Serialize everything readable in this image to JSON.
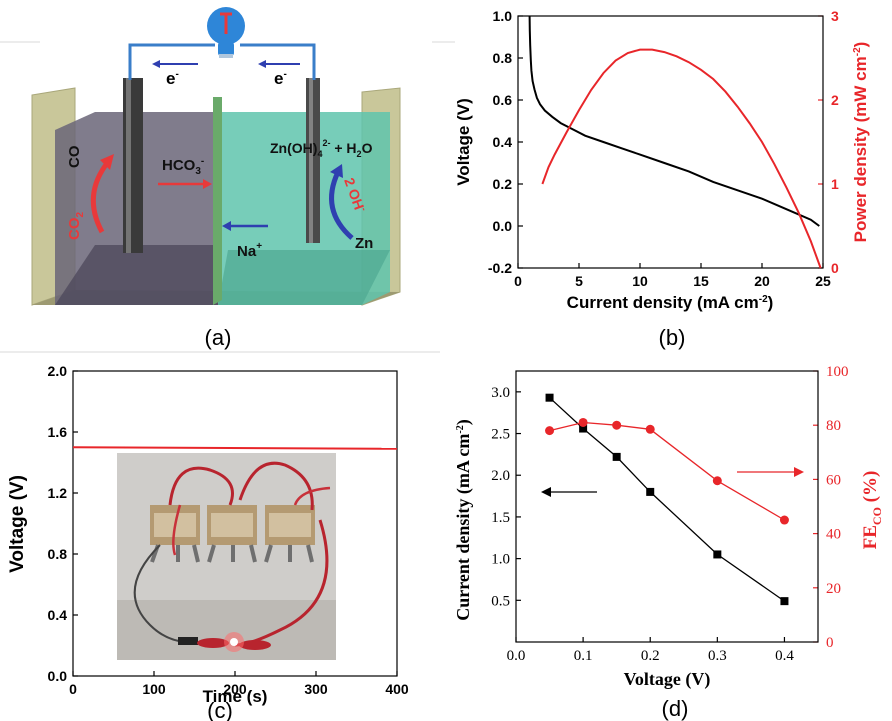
{
  "panels": {
    "a": {
      "label": "(a)",
      "electron_label": "e",
      "electron_sup": "-",
      "co_label": "CO",
      "co2_label": "CO",
      "co2_sub": "2",
      "hco3_label": "HCO",
      "hco3_sub": "3",
      "hco3_sup": "-",
      "zincate_label": "Zn(OH)",
      "zincate_sub": "4",
      "zincate_sup": "2-",
      "zincate_tail": " + H",
      "zincate_tail_sub": "2",
      "zincate_tail_end": "O",
      "oh_label": "2 OH",
      "oh_sup": "-",
      "na_label": "Na",
      "na_sup": "+",
      "zn_label": "Zn",
      "colors": {
        "arrow_red": "#e8393a",
        "arrow_blue": "#2f3fb0",
        "wire": "#3a7ec9",
        "bulb": "#2e86d8",
        "cathode_chamber": "#6a6578",
        "anode_chamber": "#5fc4ad",
        "membrane": "#6aaa6a"
      },
      "icons": [
        "light-bulb-icon"
      ]
    },
    "b": {
      "label": "(b)",
      "xlabel": "Current density (mA cm",
      "xlabel_sup": "-2",
      "xlabel_end": ")",
      "ylabel": "Voltage (V)",
      "y2label": "Power density (mW cm",
      "y2label_sup": "-2",
      "y2label_end": ")"
    },
    "c": {
      "label": "(c)",
      "xlabel": "Time (s)",
      "ylabel": "Voltage (V)"
    },
    "d": {
      "label": "(d)",
      "xlabel": "Voltage (V)",
      "ylabel": "Current density (mA cm",
      "ylabel_sup": "-2",
      "ylabel_end": ")",
      "y2label": "FE",
      "y2label_sub": "CO",
      "y2label_end": " (%)"
    }
  },
  "chart_data": [
    {
      "panel": "b",
      "type": "line",
      "xlim": [
        0,
        25
      ],
      "ylim": [
        -0.2,
        1.0
      ],
      "y2lim": [
        0,
        3
      ],
      "xticks": [
        "0",
        "5",
        "10",
        "15",
        "20",
        "25"
      ],
      "yticks": [
        "-0.2",
        "0.0",
        "0.2",
        "0.4",
        "0.6",
        "0.8",
        "1.0"
      ],
      "y2ticks": [
        "0",
        "1",
        "2",
        "3"
      ],
      "series": [
        {
          "axis": "left",
          "color": "#000000",
          "x": [
            0.95,
            0.97,
            1.0,
            1.05,
            1.1,
            1.2,
            1.35,
            1.55,
            1.8,
            2.2,
            2.8,
            3.5,
            4.5,
            5.5,
            7,
            8.5,
            10,
            12,
            14,
            16,
            18,
            20,
            22,
            24,
            24.7
          ],
          "y": [
            1.0,
            0.93,
            0.86,
            0.79,
            0.74,
            0.69,
            0.65,
            0.61,
            0.58,
            0.55,
            0.52,
            0.49,
            0.46,
            0.43,
            0.4,
            0.37,
            0.34,
            0.3,
            0.26,
            0.21,
            0.17,
            0.13,
            0.08,
            0.03,
            0.0
          ]
        },
        {
          "axis": "right",
          "color": "#e8262a",
          "x": [
            2.0,
            2.5,
            3,
            4,
            5,
            6,
            7,
            8,
            9,
            10,
            11,
            12,
            13,
            14,
            15,
            16,
            17,
            18,
            19,
            20,
            21,
            22,
            23,
            24,
            24.5,
            24.8
          ],
          "y": [
            1.0,
            1.2,
            1.35,
            1.62,
            1.88,
            2.12,
            2.32,
            2.47,
            2.56,
            2.6,
            2.6,
            2.57,
            2.52,
            2.45,
            2.36,
            2.25,
            2.1,
            1.92,
            1.72,
            1.5,
            1.24,
            0.96,
            0.66,
            0.32,
            0.12,
            0.0
          ]
        }
      ]
    },
    {
      "panel": "c",
      "type": "line",
      "xlim": [
        0,
        400
      ],
      "ylim": [
        0.0,
        2.0
      ],
      "xticks": [
        "0",
        "100",
        "200",
        "300",
        "400"
      ],
      "yticks": [
        "0.0",
        "0.4",
        "0.8",
        "1.2",
        "1.6",
        "2.0"
      ],
      "series": [
        {
          "color": "#e8262a",
          "x": [
            0,
            400
          ],
          "y": [
            1.5,
            1.49
          ]
        }
      ]
    },
    {
      "panel": "d",
      "type": "line",
      "xlim": [
        0.0,
        0.45
      ],
      "ylim": [
        0.0,
        3.25
      ],
      "y2lim": [
        0,
        100
      ],
      "xticks": [
        "0.0",
        "0.1",
        "0.2",
        "0.3",
        "0.4"
      ],
      "yticks": [
        "0.5",
        "1.0",
        "1.5",
        "2.0",
        "2.5",
        "3.0"
      ],
      "y2ticks": [
        "0",
        "20",
        "40",
        "60",
        "80",
        "100"
      ],
      "series": [
        {
          "axis": "left",
          "color": "#000000",
          "marker": "square",
          "x": [
            0.05,
            0.1,
            0.15,
            0.2,
            0.3,
            0.4
          ],
          "y": [
            2.93,
            2.56,
            2.22,
            1.8,
            1.05,
            0.49
          ]
        },
        {
          "axis": "right",
          "color": "#e8262a",
          "marker": "circle",
          "x": [
            0.05,
            0.1,
            0.15,
            0.2,
            0.3,
            0.4
          ],
          "y": [
            78,
            81,
            80,
            78.5,
            59.5,
            45
          ]
        }
      ]
    }
  ]
}
